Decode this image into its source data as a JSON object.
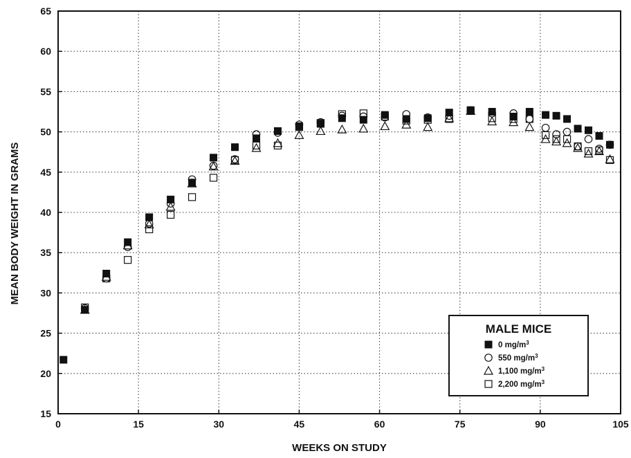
{
  "chart_data": {
    "type": "scatter",
    "title": "",
    "xlabel": "WEEKS ON STUDY",
    "ylabel": "MEAN BODY WEIGHT IN GRAMS",
    "xlim": [
      0,
      105
    ],
    "ylim": [
      15,
      65
    ],
    "x_ticks": [
      "0",
      "15",
      "30",
      "45",
      "60",
      "75",
      "90",
      "105"
    ],
    "y_ticks": [
      "15",
      "20",
      "25",
      "30",
      "35",
      "40",
      "45",
      "50",
      "55",
      "60",
      "65"
    ],
    "grid": true,
    "legend": {
      "title": "MALE MICE",
      "position": "bottom-right",
      "entries": [
        {
          "label": "0 mg/m",
          "sup": "3",
          "marker": "filled-square"
        },
        {
          "label": "550 mg/m",
          "sup": "3",
          "marker": "open-circle"
        },
        {
          "label": "1,100 mg/m",
          "sup": "3",
          "marker": "open-triangle"
        },
        {
          "label": "2,200 mg/m",
          "sup": "3",
          "marker": "open-square"
        }
      ]
    },
    "series": [
      {
        "name": "0 mg/m3",
        "marker": "filled-square",
        "points": [
          [
            1,
            21.7
          ],
          [
            5,
            27.9
          ],
          [
            9,
            32.4
          ],
          [
            13,
            36.3
          ],
          [
            17,
            39.4
          ],
          [
            21,
            41.6
          ],
          [
            25,
            43.7
          ],
          [
            29,
            46.8
          ],
          [
            33,
            48.1
          ],
          [
            37,
            49.2
          ],
          [
            41,
            50.1
          ],
          [
            45,
            50.7
          ],
          [
            49,
            51.0
          ],
          [
            53,
            51.7
          ],
          [
            57,
            51.5
          ],
          [
            61,
            52.1
          ],
          [
            65,
            51.6
          ],
          [
            69,
            51.7
          ],
          [
            73,
            52.4
          ],
          [
            77,
            52.7
          ],
          [
            81,
            52.5
          ],
          [
            85,
            51.9
          ],
          [
            88,
            52.5
          ],
          [
            91,
            52.1
          ],
          [
            93,
            52.0
          ],
          [
            95,
            51.6
          ],
          [
            97,
            50.4
          ],
          [
            99,
            50.2
          ],
          [
            101,
            49.5
          ],
          [
            103,
            48.4
          ]
        ]
      },
      {
        "name": "550 mg/m3",
        "marker": "open-circle",
        "points": [
          [
            5,
            28.1
          ],
          [
            9,
            31.8
          ],
          [
            13,
            35.7
          ],
          [
            17,
            38.6
          ],
          [
            21,
            41.1
          ],
          [
            25,
            44.1
          ],
          [
            29,
            45.8
          ],
          [
            33,
            46.6
          ],
          [
            37,
            49.7
          ],
          [
            41,
            49.9
          ],
          [
            45,
            50.9
          ],
          [
            49,
            51.2
          ],
          [
            53,
            52.0
          ],
          [
            57,
            51.9
          ],
          [
            61,
            51.8
          ],
          [
            65,
            52.2
          ],
          [
            69,
            51.8
          ],
          [
            73,
            52.0
          ],
          [
            77,
            52.6
          ],
          [
            81,
            52.3
          ],
          [
            85,
            52.3
          ],
          [
            88,
            51.6
          ],
          [
            91,
            50.5
          ],
          [
            93,
            49.7
          ],
          [
            95,
            50.0
          ],
          [
            97,
            48.2
          ],
          [
            99,
            49.1
          ],
          [
            101,
            47.9
          ],
          [
            103,
            48.4
          ]
        ]
      },
      {
        "name": "1,100 mg/m3",
        "marker": "open-triangle",
        "points": [
          [
            5,
            27.9
          ],
          [
            9,
            32.0
          ],
          [
            13,
            35.9
          ],
          [
            17,
            38.5
          ],
          [
            21,
            40.7
          ],
          [
            25,
            43.6
          ],
          [
            29,
            45.7
          ],
          [
            33,
            46.4
          ],
          [
            37,
            48.0
          ],
          [
            41,
            48.6
          ],
          [
            45,
            49.6
          ],
          [
            49,
            50.1
          ],
          [
            53,
            50.3
          ],
          [
            57,
            50.4
          ],
          [
            61,
            50.7
          ],
          [
            65,
            50.9
          ],
          [
            69,
            50.6
          ],
          [
            73,
            51.7
          ],
          [
            77,
            52.6
          ],
          [
            81,
            51.3
          ],
          [
            85,
            51.2
          ],
          [
            88,
            50.6
          ],
          [
            91,
            49.1
          ],
          [
            93,
            48.8
          ],
          [
            95,
            48.6
          ],
          [
            97,
            48.0
          ],
          [
            99,
            47.3
          ],
          [
            101,
            47.6
          ],
          [
            103,
            46.6
          ]
        ]
      },
      {
        "name": "2,200 mg/m3",
        "marker": "open-square",
        "points": [
          [
            5,
            28.2
          ],
          [
            9,
            31.8
          ],
          [
            13,
            34.1
          ],
          [
            17,
            37.9
          ],
          [
            21,
            39.7
          ],
          [
            25,
            41.9
          ],
          [
            29,
            44.3
          ],
          [
            33,
            46.5
          ],
          [
            37,
            48.3
          ],
          [
            41,
            48.3
          ],
          [
            45,
            50.6
          ],
          [
            49,
            51.1
          ],
          [
            53,
            52.2
          ],
          [
            57,
            52.3
          ],
          [
            61,
            51.9
          ],
          [
            65,
            51.4
          ],
          [
            69,
            51.5
          ],
          [
            73,
            51.6
          ],
          [
            77,
            52.6
          ],
          [
            81,
            51.7
          ],
          [
            85,
            51.6
          ],
          [
            88,
            51.6
          ],
          [
            91,
            49.6
          ],
          [
            93,
            49.1
          ],
          [
            95,
            49.1
          ],
          [
            97,
            48.2
          ],
          [
            99,
            47.6
          ],
          [
            101,
            47.7
          ],
          [
            103,
            46.5
          ]
        ]
      }
    ]
  }
}
